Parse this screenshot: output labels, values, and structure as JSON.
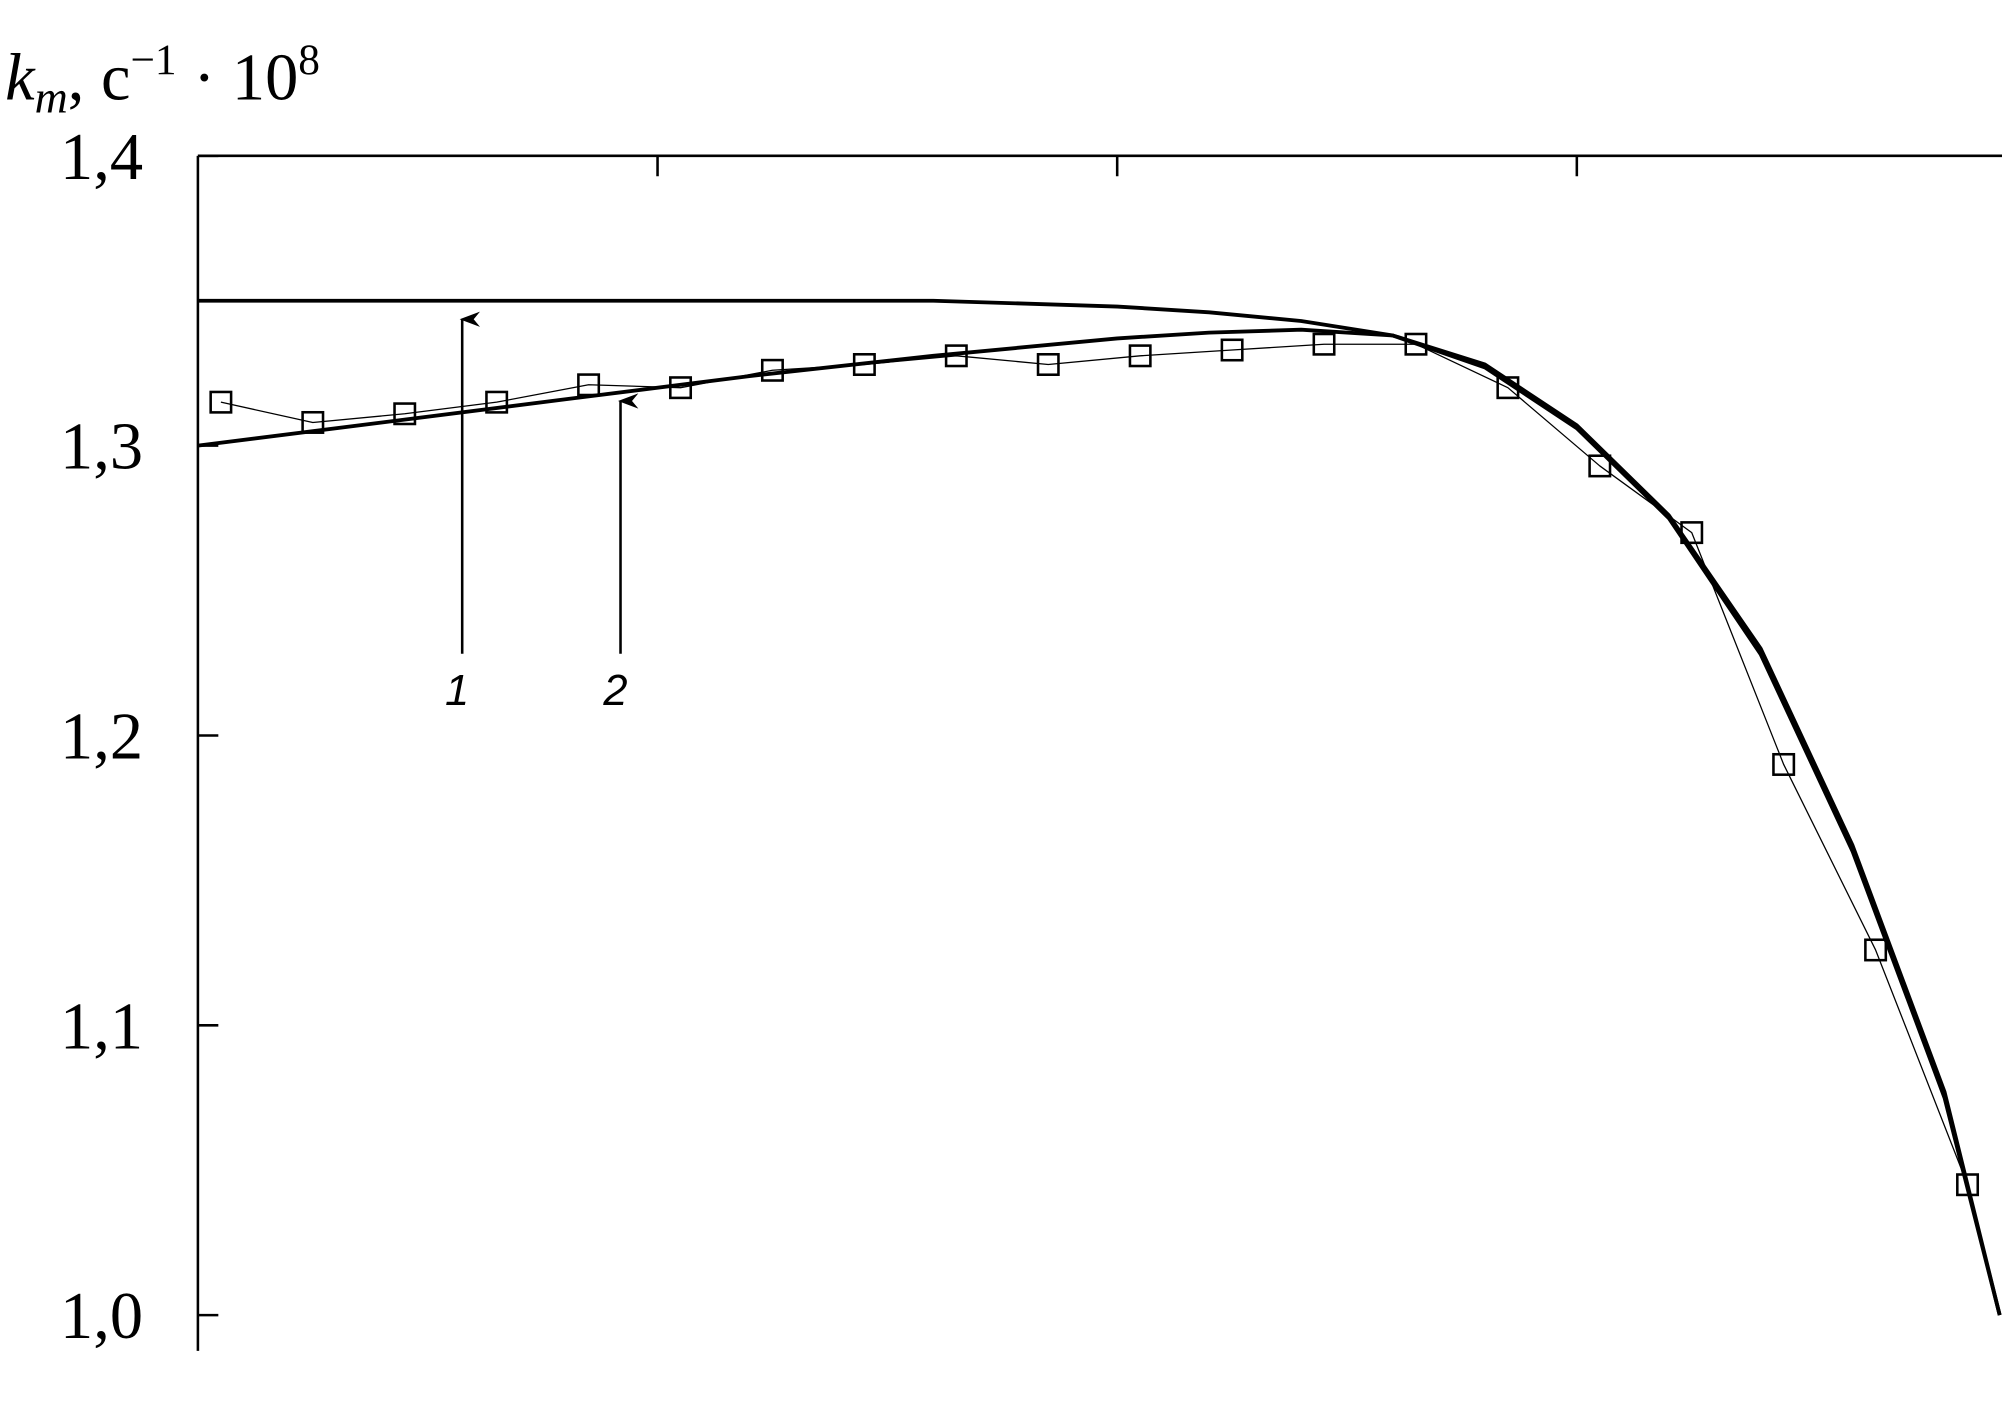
{
  "chart_data": {
    "type": "line",
    "y_label": {
      "symbol": "k",
      "subscript": "m",
      "unit": ", c",
      "unit_exponent": "−1",
      "multiplier": " · 10",
      "multiplier_exponent": "8"
    },
    "xlim": [
      0,
      19.6
    ],
    "xticks": [
      5,
      10,
      15
    ],
    "ylim": [
      1.0,
      1.4
    ],
    "yticks": [
      {
        "value": 1.0,
        "label": "1,0"
      },
      {
        "value": 1.1,
        "label": "1,1"
      },
      {
        "value": 1.2,
        "label": "1,2"
      },
      {
        "value": 1.3,
        "label": "1,3"
      },
      {
        "value": 1.4,
        "label": "1,4"
      }
    ],
    "series": [
      {
        "color": "#000000",
        "marker": "square",
        "line_width": 1,
        "x": [
          0.25,
          1.25,
          2.25,
          3.25,
          4.25,
          5.25,
          6.25,
          7.25,
          8.25,
          9.25,
          10.25,
          11.25,
          12.25,
          13.25,
          14.25,
          15.25,
          16.25,
          17.25,
          18.25,
          19.25
        ],
        "values": [
          1.315,
          1.308,
          1.311,
          1.315,
          1.321,
          1.32,
          1.326,
          1.328,
          1.331,
          1.328,
          1.331,
          1.333,
          1.335,
          1.335,
          1.32,
          1.293,
          1.27,
          1.19,
          1.126,
          1.045
        ]
      },
      {
        "color": "#000000",
        "line_width": 3,
        "x": [
          0,
          2,
          4,
          6,
          8,
          10,
          11,
          12,
          13,
          14,
          15,
          16,
          17,
          18,
          19,
          19.6
        ],
        "values": [
          1.35,
          1.35,
          1.35,
          1.35,
          1.35,
          1.348,
          1.346,
          1.343,
          1.338,
          1.327,
          1.306,
          1.275,
          1.228,
          1.16,
          1.075,
          1.0
        ]
      },
      {
        "color": "#000000",
        "line_width": 3,
        "x": [
          0,
          2,
          4,
          6,
          8,
          10,
          11,
          12,
          13,
          14,
          15,
          16,
          17,
          18,
          19,
          19.6
        ],
        "values": [
          1.3,
          1.308,
          1.316,
          1.324,
          1.331,
          1.337,
          1.339,
          1.34,
          1.338,
          1.328,
          1.307,
          1.276,
          1.23,
          1.162,
          1.077,
          1.0
        ]
      }
    ],
    "annotations": [
      "1",
      "2"
    ]
  }
}
